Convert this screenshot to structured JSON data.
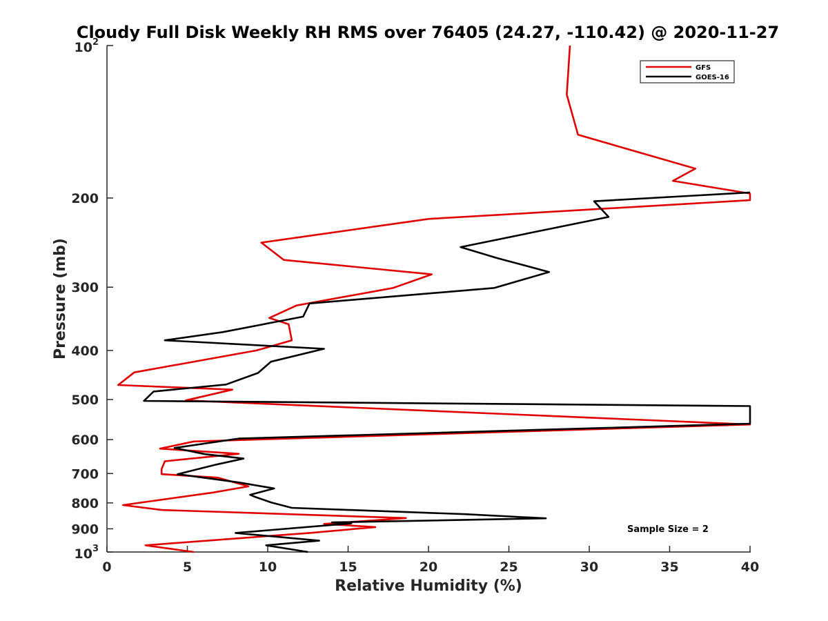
{
  "chart_data": {
    "type": "line",
    "title": "Cloudy Full Disk Weekly RH RMS over 76405 (24.27, -110.42) @ 2020-11-27",
    "xlabel": "Relative Humidity (%)",
    "ylabel": "Pressure (mb)",
    "xlim": [
      0,
      40
    ],
    "ylim": [
      100,
      1000
    ],
    "yscale": "log",
    "y_reversed": true,
    "grid": false,
    "legend_position": "top-right",
    "x_ticks": [
      "0",
      "5",
      "10",
      "15",
      "20",
      "25",
      "30",
      "35",
      "40"
    ],
    "y_ticks": [
      {
        "value": 100,
        "base": "10",
        "exp": "2"
      },
      {
        "value": 200,
        "label": "200"
      },
      {
        "value": 300,
        "label": "300"
      },
      {
        "value": 400,
        "label": "400"
      },
      {
        "value": 500,
        "label": "500"
      },
      {
        "value": 600,
        "label": "600"
      },
      {
        "value": 700,
        "label": "700"
      },
      {
        "value": 800,
        "label": "800"
      },
      {
        "value": 900,
        "label": "900"
      },
      {
        "value": 1000,
        "base": "10",
        "exp": "3"
      }
    ],
    "annotation": "Sample Size = 2",
    "series": [
      {
        "name": "GFS",
        "color": "#e00000",
        "points": [
          [
            28.8,
            100
          ],
          [
            28.6,
            125
          ],
          [
            29.3,
            150
          ],
          [
            36.6,
            175
          ],
          [
            35.2,
            185
          ],
          [
            40,
            196
          ],
          [
            40,
            202
          ],
          [
            20,
            220
          ],
          [
            9.6,
            245
          ],
          [
            11,
            265
          ],
          [
            20.2,
            283
          ],
          [
            17.8,
            301
          ],
          [
            11.8,
            326
          ],
          [
            10.1,
            345
          ],
          [
            11.3,
            355
          ],
          [
            11.5,
            382
          ],
          [
            9.3,
            400
          ],
          [
            1.7,
            442
          ],
          [
            0.7,
            468
          ],
          [
            7.8,
            478
          ],
          [
            4.9,
            502
          ],
          [
            40,
            560
          ],
          [
            5.4,
            605
          ],
          [
            3.3,
            625
          ],
          [
            8.2,
            640
          ],
          [
            3.6,
            662
          ],
          [
            3.4,
            686
          ],
          [
            3.4,
            702
          ],
          [
            6.9,
            713
          ],
          [
            8.8,
            742
          ],
          [
            6.6,
            763
          ],
          [
            1,
            808
          ],
          [
            3.4,
            826
          ],
          [
            18.6,
            857
          ],
          [
            13.5,
            880
          ],
          [
            16.7,
            893
          ],
          [
            12.6,
            917
          ],
          [
            2.4,
            970
          ],
          [
            5.4,
            1000
          ]
        ]
      },
      {
        "name": "GOES-16",
        "color": "#000000",
        "points": [
          [
            40,
            195
          ],
          [
            30.3,
            203
          ],
          [
            31.2,
            218
          ],
          [
            22,
            250
          ],
          [
            24.3,
            263
          ],
          [
            27.5,
            280
          ],
          [
            24.1,
            301
          ],
          [
            12.6,
            323
          ],
          [
            12.2,
            343
          ],
          [
            7.2,
            368
          ],
          [
            3.6,
            382
          ],
          [
            13.5,
            397
          ],
          [
            10.2,
            421
          ],
          [
            9.4,
            443
          ],
          [
            7.4,
            467
          ],
          [
            2.9,
            482
          ],
          [
            2.3,
            503
          ],
          [
            40,
            515
          ],
          [
            40,
            558
          ],
          [
            8.2,
            597
          ],
          [
            4.2,
            623
          ],
          [
            6.1,
            641
          ],
          [
            8.5,
            654
          ],
          [
            6.8,
            672
          ],
          [
            4.4,
            702
          ],
          [
            8.2,
            729
          ],
          [
            10.4,
            749
          ],
          [
            8.9,
            771
          ],
          [
            9.2,
            778
          ],
          [
            10.2,
            798
          ],
          [
            11.5,
            818
          ],
          [
            22.3,
            842
          ],
          [
            27.3,
            858
          ],
          [
            14,
            874
          ],
          [
            15.2,
            878
          ],
          [
            8,
            917
          ],
          [
            13.2,
            950
          ],
          [
            9.9,
            970
          ],
          [
            12.5,
            1000
          ]
        ]
      }
    ]
  }
}
